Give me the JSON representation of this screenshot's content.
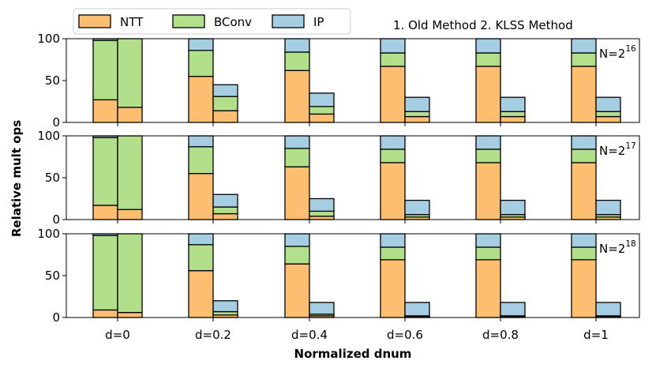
{
  "chart_data": {
    "type": "bar",
    "stacked": true,
    "title": "",
    "xlabel": "Normalized dnum",
    "ylabel": "Relative mult ops",
    "ylim": [
      0,
      100
    ],
    "yticks": [
      "0",
      "50",
      "100"
    ],
    "categories": [
      "d=0",
      "d=0.2",
      "d=0.4",
      "d=0.6",
      "d=0.8",
      "d=1"
    ],
    "bar_roles": [
      "Old Method",
      "KLSS Method"
    ],
    "method_note": "1. Old Method  2. KLSS Method",
    "legend_position": "top-left",
    "legend": [
      {
        "name": "NTT",
        "color": "#fdbf6f"
      },
      {
        "name": "BConv",
        "color": "#b2df8a"
      },
      {
        "name": "IP",
        "color": "#a6cee3"
      }
    ],
    "panels": [
      {
        "label_base": "N=2",
        "label_exp": "16",
        "old": {
          "NTT": [
            27,
            55,
            62,
            67,
            67,
            67
          ],
          "BConv": [
            71,
            31,
            22,
            16,
            16,
            16
          ],
          "IP": [
            2,
            14,
            16,
            17,
            17,
            17
          ]
        },
        "klss": {
          "NTT": [
            18,
            14,
            10,
            7,
            7,
            7
          ],
          "BConv": [
            82,
            17,
            9,
            6,
            6,
            6
          ],
          "IP": [
            0,
            14,
            16,
            17,
            17,
            17
          ]
        }
      },
      {
        "label_base": "N=2",
        "label_exp": "17",
        "old": {
          "NTT": [
            17,
            55,
            63,
            68,
            68,
            68
          ],
          "BConv": [
            81,
            32,
            22,
            16,
            16,
            16
          ],
          "IP": [
            2,
            13,
            15,
            16,
            16,
            16
          ]
        },
        "klss": {
          "NTT": [
            12,
            7,
            4,
            3,
            3,
            3
          ],
          "BConv": [
            88,
            8,
            6,
            3,
            3,
            3
          ],
          "IP": [
            0,
            15,
            15,
            17,
            17,
            17
          ]
        }
      },
      {
        "label_base": "N=2",
        "label_exp": "18",
        "old": {
          "NTT": [
            9,
            56,
            64,
            69,
            69,
            69
          ],
          "BConv": [
            89,
            31,
            21,
            15,
            15,
            15
          ],
          "IP": [
            2,
            13,
            15,
            16,
            16,
            16
          ]
        },
        "klss": {
          "NTT": [
            6,
            3,
            2,
            1,
            1,
            1
          ],
          "BConv": [
            94,
            4,
            2,
            1,
            1,
            1
          ],
          "IP": [
            0,
            13,
            14,
            16,
            16,
            16
          ]
        }
      }
    ]
  }
}
